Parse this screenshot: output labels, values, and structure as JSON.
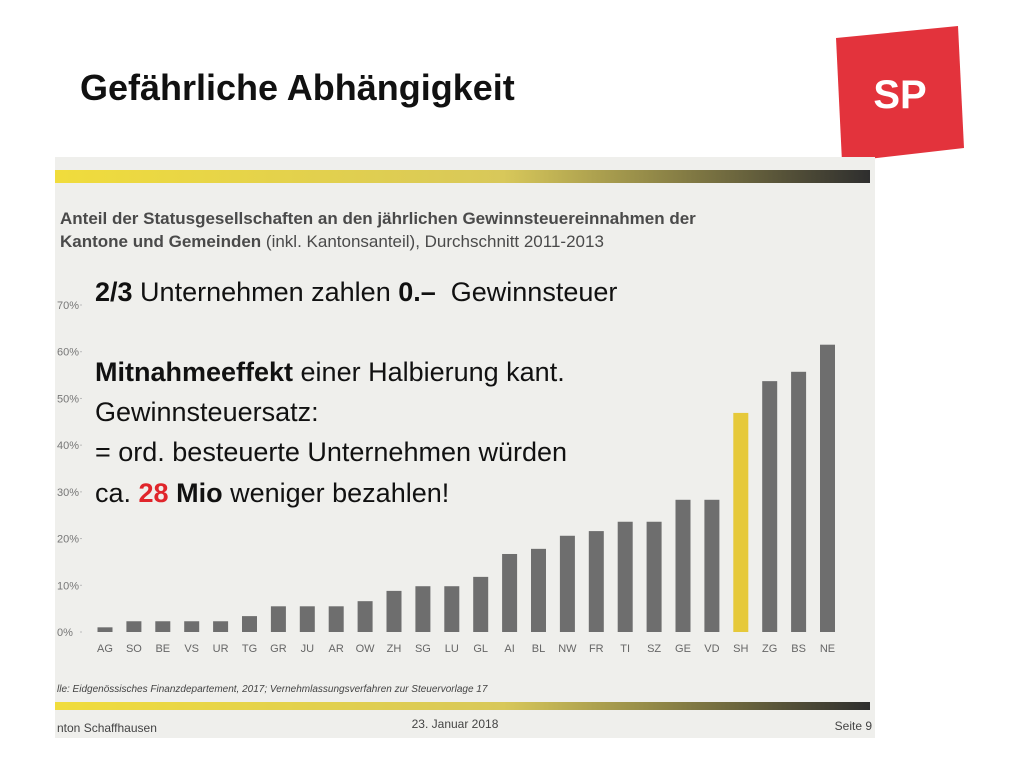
{
  "slide_title": "Gefährliche Abhängigkeit",
  "logo": "SP",
  "overlay_lines": [
    [
      {
        "text": "2/3",
        "bold": true
      },
      {
        "text": " Unternehmen zahlen "
      },
      {
        "text": "0.–",
        "bold": true
      },
      {
        "text": "  Gewinnsteuer"
      }
    ],
    [
      {
        "text": "Mitnahmeeffekt",
        "bold": true
      },
      {
        "text": " einer Halbierung kant."
      }
    ],
    [
      {
        "text": "Gewinnsteuersatz:"
      }
    ],
    [
      {
        "text": "= ord. besteuerte Unternehmen würden"
      }
    ],
    [
      {
        "text": "ca. "
      },
      {
        "text": "28",
        "bold": true,
        "color": "#e0252b"
      },
      {
        "text": " "
      },
      {
        "text": "Mio",
        "bold": true
      },
      {
        "text": " weniger bezahlen!"
      }
    ]
  ],
  "source": "lle: Eidgenössisches Finanzdepartement, 2017; Vernehmlassungsverfahren zur Steuervorlage 17",
  "footer": {
    "left": "nton Schaffhausen",
    "center": "23. Januar 2018",
    "right": "Seite 9"
  },
  "chart_data": {
    "type": "bar",
    "title_lines": [
      [
        {
          "text": "Anteil der Statusgesellschaften an den jährlichen Gewinnsteuereinnahmen der",
          "bold": true
        }
      ],
      [
        {
          "text": "Kantone und Gemeinden",
          "bold": true
        },
        {
          "text": " (inkl. Kantonsanteil), Durchschnitt 2011-2013"
        }
      ]
    ],
    "categories": [
      "AG",
      "SO",
      "BE",
      "VS",
      "UR",
      "TG",
      "GR",
      "JU",
      "AR",
      "OW",
      "ZH",
      "SG",
      "LU",
      "GL",
      "AI",
      "BL",
      "NW",
      "FR",
      "TI",
      "SZ",
      "GE",
      "VD",
      "SH",
      "ZG",
      "BS",
      "NE"
    ],
    "values": [
      1,
      2.3,
      2.3,
      2.3,
      2.3,
      3.4,
      5.5,
      5.5,
      5.5,
      6.6,
      8.8,
      9.8,
      9.8,
      11.8,
      16.7,
      17.8,
      20.6,
      21.6,
      23.6,
      23.6,
      28.3,
      28.3,
      46.9,
      53.7,
      55.7,
      61.5
    ],
    "colors": [
      "#6e6e6e",
      "#6e6e6e",
      "#6e6e6e",
      "#6e6e6e",
      "#6e6e6e",
      "#6e6e6e",
      "#6e6e6e",
      "#6e6e6e",
      "#6e6e6e",
      "#6e6e6e",
      "#6e6e6e",
      "#6e6e6e",
      "#6e6e6e",
      "#6e6e6e",
      "#6e6e6e",
      "#6e6e6e",
      "#6e6e6e",
      "#6e6e6e",
      "#6e6e6e",
      "#6e6e6e",
      "#6e6e6e",
      "#6e6e6e",
      "#e6c93a",
      "#6e6e6e",
      "#6e6e6e",
      "#6e6e6e"
    ],
    "ylim": [
      0,
      70
    ],
    "yticks": [
      {
        "value": 0,
        "label": "0%"
      },
      {
        "value": 10,
        "label": "10%"
      },
      {
        "value": 20,
        "label": "20%"
      },
      {
        "value": 30,
        "label": "30%"
      },
      {
        "value": 40,
        "label": "40%"
      },
      {
        "value": 50,
        "label": "50%"
      },
      {
        "value": 60,
        "label": "60%"
      },
      {
        "value": 70,
        "label": "70%"
      }
    ],
    "grid": false
  }
}
